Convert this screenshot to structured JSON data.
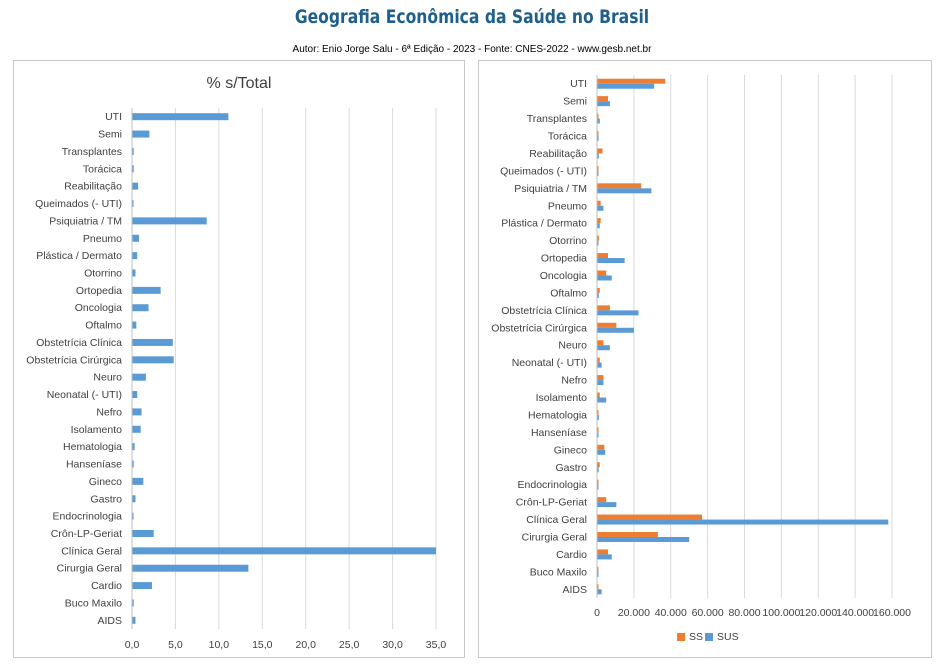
{
  "header": {
    "title": "Geografia Econômica da Saúde no Brasil",
    "subtitle": "Autor: Enio Jorge Salu - 6ª Edição - 2023 - Fonte: CNES-2022 - www.gesb.net.br"
  },
  "colors": {
    "sus": "#5b9bd5",
    "ss": "#ed7d31",
    "grid": "#d9d9d9",
    "title": "#1f5f8b"
  },
  "chart_data": [
    {
      "type": "bar",
      "orientation": "horizontal",
      "title": "% s/Total",
      "categories": [
        "UTI",
        "Semi",
        "Transplantes",
        "Torácica",
        "Reabilitação",
        "Queimados (- UTI)",
        "Psiquiatria / TM",
        "Pneumo",
        "Plástica / Dermato",
        "Otorrino",
        "Ortopedia",
        "Oncologia",
        "Oftalmo",
        "Obstetrícia Clínica",
        "Obstetrícia Cirúrgica",
        "Neuro",
        "Neonatal (- UTI)",
        "Nefro",
        "Isolamento",
        "Hematologia",
        "Hanseníase",
        "Gineco",
        "Gastro",
        "Endocrinologia",
        "Crôn-LP-Geriat",
        "Clínica Geral",
        "Cirurgia Geral",
        "Cardio",
        "Buco Maxilo",
        "AIDS"
      ],
      "values": [
        11.1,
        2.0,
        0.2,
        0.2,
        0.7,
        0.1,
        8.6,
        0.8,
        0.6,
        0.4,
        3.3,
        1.9,
        0.5,
        4.7,
        4.8,
        1.6,
        0.6,
        1.1,
        1.0,
        0.3,
        0.2,
        1.3,
        0.4,
        0.1,
        2.5,
        35.0,
        13.4,
        2.3,
        0.2,
        0.4
      ],
      "xlim": [
        0,
        35
      ],
      "x_ticks": [
        "0,0",
        "5,0",
        "10,0",
        "15,0",
        "20,0",
        "25,0",
        "30,0",
        "35,0"
      ],
      "grid": true
    },
    {
      "type": "bar",
      "orientation": "horizontal",
      "categories": [
        "UTI",
        "Semi",
        "Transplantes",
        "Torácica",
        "Reabilitação",
        "Queimados (- UTI)",
        "Psiquiatria / TM",
        "Pneumo",
        "Plástica / Dermato",
        "Otorrino",
        "Ortopedia",
        "Oncologia",
        "Oftalmo",
        "Obstetrícia Clínica",
        "Obstetrícia Cirúrgica",
        "Neuro",
        "Neonatal (- UTI)",
        "Nefro",
        "Isolamento",
        "Hematologia",
        "Hanseníase",
        "Gineco",
        "Gastro",
        "Endocrinologia",
        "Crôn-LP-Geriat",
        "Clínica Geral",
        "Cirurgia Geral",
        "Cardio",
        "Buco Maxilo",
        "AIDS"
      ],
      "series": [
        {
          "name": "SS",
          "values": [
            37000,
            6000,
            300,
            200,
            3000,
            300,
            24000,
            2000,
            2000,
            1000,
            6000,
            5000,
            1500,
            7000,
            10500,
            3500,
            1500,
            3500,
            1500,
            800,
            300,
            4000,
            1500,
            200,
            5000,
            57000,
            33000,
            6000,
            300,
            500
          ]
        },
        {
          "name": "SUS",
          "values": [
            31000,
            7000,
            1500,
            200,
            1000,
            200,
            29500,
            3500,
            1500,
            500,
            15000,
            8000,
            1000,
            22500,
            20000,
            7000,
            2500,
            3500,
            5000,
            1000,
            300,
            4500,
            900,
            300,
            10500,
            158000,
            50000,
            8000,
            300,
            2500
          ]
        }
      ],
      "xlim": [
        0,
        160000
      ],
      "x_ticks": [
        "0",
        "20.000",
        "40.000",
        "60.000",
        "80.000",
        "100.000",
        "120.000",
        "140.000",
        "160.000"
      ],
      "legend": "bottom",
      "grid": true
    }
  ]
}
